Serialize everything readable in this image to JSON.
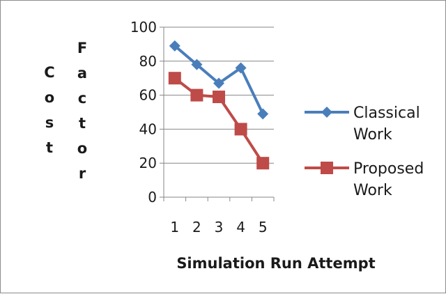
{
  "chart_data": {
    "type": "line",
    "title": "",
    "xlabel": "Simulation Run Attempt",
    "ylabel_words": [
      "Cost",
      "Factor"
    ],
    "x": [
      "1",
      "2",
      "3",
      "4",
      "5"
    ],
    "ylim": [
      0,
      100
    ],
    "yticks": [
      "0",
      "20",
      "40",
      "60",
      "80",
      "100"
    ],
    "grid": "horizontal",
    "legend_position": "right",
    "series": [
      {
        "name_lines": [
          "Classical",
          "Work"
        ],
        "values": [
          89,
          78,
          67,
          76,
          49
        ],
        "color": "#4a7ebb",
        "marker": "diamond"
      },
      {
        "name_lines": [
          "Proposed",
          "Work"
        ],
        "values": [
          70,
          60,
          59,
          40,
          20
        ],
        "color": "#be4b48",
        "marker": "square"
      }
    ]
  }
}
